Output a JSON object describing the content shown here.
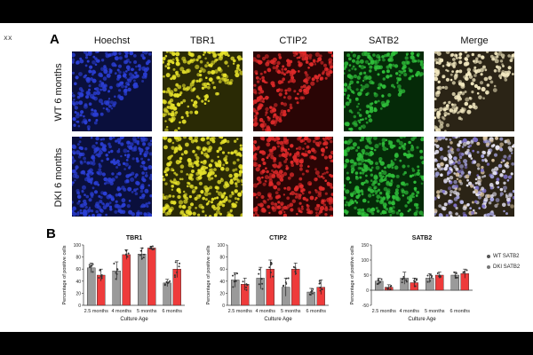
{
  "page_mark": "xx",
  "panel_a": {
    "letter": "A",
    "columns": [
      {
        "label": "Hoechst",
        "color": "#2b3fd6",
        "bg": "#0a0f3c"
      },
      {
        "label": "TBR1",
        "color": "#e6e22a",
        "bg": "#2a2a05"
      },
      {
        "label": "CTIP2",
        "color": "#e02a2a",
        "bg": "#2a0505"
      },
      {
        "label": "SATB2",
        "color": "#2fbf3a",
        "bg": "#052a08"
      },
      {
        "label": "Merge",
        "color": "#f2e8c0",
        "bg": "#2b2416"
      }
    ],
    "rows": [
      {
        "label": "WT 6 months"
      },
      {
        "label": "DKI 6 months"
      }
    ]
  },
  "panel_b": {
    "letter": "B",
    "legend": [
      {
        "label": "WT SATB2",
        "color": "#555555"
      },
      {
        "label": "DKI SATB2",
        "color": "#777777"
      }
    ]
  },
  "chart_data": [
    {
      "type": "bar",
      "title": "TBR1",
      "ylabel": "Percentage of positive cells",
      "xlabel": "Culture Age",
      "categories": [
        "2.5 months",
        "4 months",
        "5 months",
        "6 months"
      ],
      "ylim": [
        0,
        100
      ],
      "yticks": [
        0,
        20,
        40,
        60,
        80,
        100
      ],
      "series": [
        {
          "color": "#9a9a9a",
          "values": [
            62,
            57,
            85,
            37
          ],
          "errors": [
            8,
            15,
            10,
            6
          ]
        },
        {
          "color": "#ee3b3b",
          "values": [
            50,
            84,
            95,
            60
          ],
          "errors": [
            10,
            8,
            3,
            14
          ]
        }
      ]
    },
    {
      "type": "bar",
      "title": "CTIP2",
      "ylabel": "Percentage of positive cells",
      "xlabel": "Culture Age",
      "categories": [
        "2.5 months",
        "4 months",
        "5 months",
        "6 months"
      ],
      "ylim": [
        0,
        100
      ],
      "yticks": [
        0,
        20,
        40,
        60,
        80,
        100
      ],
      "series": [
        {
          "color": "#9a9a9a",
          "values": [
            42,
            45,
            30,
            22
          ],
          "errors": [
            12,
            18,
            15,
            6
          ]
        },
        {
          "color": "#ee3b3b",
          "values": [
            35,
            60,
            60,
            30
          ],
          "errors": [
            10,
            15,
            10,
            12
          ]
        }
      ]
    },
    {
      "type": "bar",
      "title": "SATB2",
      "ylabel": "Percentage of positive cells",
      "xlabel": "Culture Age",
      "categories": [
        "2.5 months",
        "4 months",
        "5 months",
        "6 months"
      ],
      "ylim": [
        -50,
        150
      ],
      "yticks": [
        -50,
        0,
        50,
        100,
        150
      ],
      "series": [
        {
          "color": "#9a9a9a",
          "values": [
            30,
            40,
            40,
            50
          ],
          "errors": [
            10,
            20,
            15,
            10
          ]
        },
        {
          "color": "#ee3b3b",
          "values": [
            10,
            25,
            50,
            55
          ],
          "errors": [
            8,
            15,
            10,
            15
          ]
        }
      ]
    }
  ]
}
